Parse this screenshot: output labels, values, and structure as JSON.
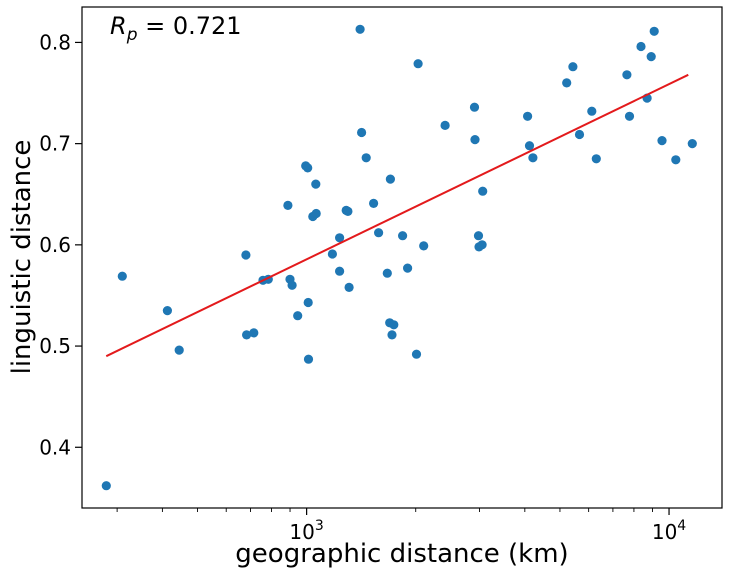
{
  "chart_data": {
    "type": "scatter",
    "xlabel": "geographic distance (km)",
    "ylabel": "linguistic distance",
    "xscale": "log",
    "xlim": [
      240,
      14000
    ],
    "ylim": [
      0.34,
      0.835
    ],
    "xticks": [
      1000,
      10000
    ],
    "yticks": [
      0.4,
      0.5,
      0.6,
      0.7,
      0.8
    ],
    "ytick_labels": [
      "0.4",
      "0.5",
      "0.6",
      "0.7",
      "0.8"
    ],
    "grid": false,
    "annotation": {
      "symbol": "R",
      "subscript": "p",
      "text": " = 0.721"
    },
    "series": [
      {
        "color": "#1f77b4",
        "points": [
          [
            280,
            0.362
          ],
          [
            310,
            0.569
          ],
          [
            413,
            0.535
          ],
          [
            445,
            0.496
          ],
          [
            680,
            0.59
          ],
          [
            683,
            0.511
          ],
          [
            715,
            0.513
          ],
          [
            758,
            0.565
          ],
          [
            784,
            0.566
          ],
          [
            888,
            0.639
          ],
          [
            900,
            0.566
          ],
          [
            912,
            0.56
          ],
          [
            945,
            0.53
          ],
          [
            994,
            0.678
          ],
          [
            1007,
            0.676
          ],
          [
            1010,
            0.543
          ],
          [
            1012,
            0.487
          ],
          [
            1040,
            0.628
          ],
          [
            1060,
            0.66
          ],
          [
            1063,
            0.631
          ],
          [
            1178,
            0.591
          ],
          [
            1233,
            0.607
          ],
          [
            1233,
            0.574
          ],
          [
            1286,
            0.634
          ],
          [
            1300,
            0.633
          ],
          [
            1310,
            0.558
          ],
          [
            1405,
            0.813
          ],
          [
            1418,
            0.711
          ],
          [
            1460,
            0.686
          ],
          [
            1530,
            0.641
          ],
          [
            1580,
            0.612
          ],
          [
            1670,
            0.572
          ],
          [
            1695,
            0.523
          ],
          [
            1703,
            0.665
          ],
          [
            1720,
            0.511
          ],
          [
            1740,
            0.521
          ],
          [
            1840,
            0.609
          ],
          [
            1900,
            0.577
          ],
          [
            2010,
            0.492
          ],
          [
            2030,
            0.779
          ],
          [
            2104,
            0.599
          ],
          [
            2410,
            0.718
          ],
          [
            2906,
            0.736
          ],
          [
            2915,
            0.704
          ],
          [
            2980,
            0.609
          ],
          [
            2990,
            0.598
          ],
          [
            3050,
            0.6
          ],
          [
            3060,
            0.653
          ],
          [
            4070,
            0.727
          ],
          [
            4120,
            0.698
          ],
          [
            4210,
            0.686
          ],
          [
            5220,
            0.76
          ],
          [
            5430,
            0.776
          ],
          [
            5660,
            0.709
          ],
          [
            6120,
            0.732
          ],
          [
            6300,
            0.685
          ],
          [
            7650,
            0.768
          ],
          [
            7780,
            0.727
          ],
          [
            8370,
            0.796
          ],
          [
            8700,
            0.745
          ],
          [
            8930,
            0.786
          ],
          [
            9100,
            0.811
          ],
          [
            9560,
            0.703
          ],
          [
            10440,
            0.684
          ],
          [
            11590,
            0.7
          ]
        ]
      }
    ],
    "fit_line": {
      "color": "#e31a1c",
      "points": [
        [
          280,
          0.49
        ],
        [
          11300,
          0.768
        ]
      ]
    }
  }
}
